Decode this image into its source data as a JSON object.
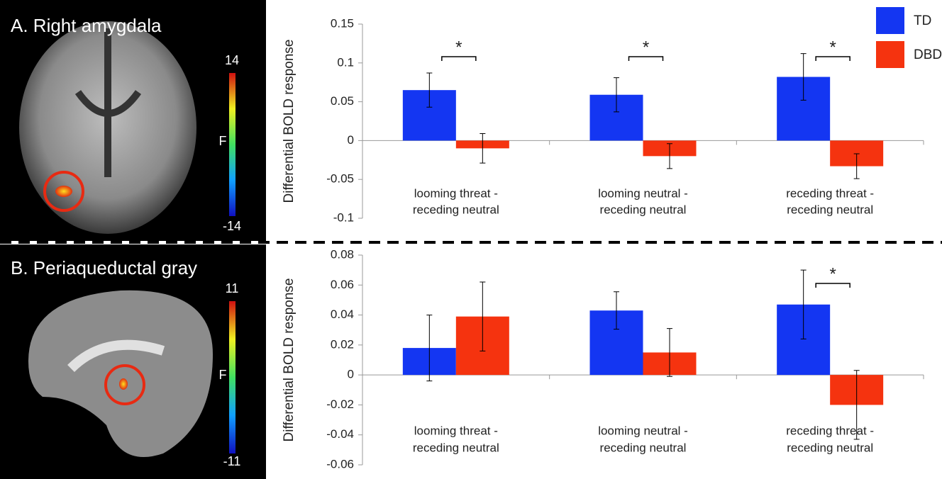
{
  "panels": [
    {
      "title": "A. Right amygdala",
      "colorbar": {
        "max": "14",
        "label": "F",
        "min": "-14"
      }
    },
    {
      "title": "B. Periaqueductal gray",
      "colorbar": {
        "max": "11",
        "label": "F",
        "min": "-11"
      }
    }
  ],
  "chart_data": [
    {
      "type": "bar",
      "y_label": "Differential BOLD response",
      "categories": [
        [
          "looming threat -",
          "receding neutral"
        ],
        [
          "looming neutral -",
          "receding neutral"
        ],
        [
          "receding threat -",
          "receding neutral"
        ]
      ],
      "series": [
        {
          "name": "TD",
          "color": "#1436f2",
          "values": [
            0.065,
            0.059,
            0.082
          ],
          "errors": [
            0.022,
            0.022,
            0.03
          ]
        },
        {
          "name": "DBD",
          "color": "#f5330f",
          "values": [
            -0.01,
            -0.02,
            -0.033
          ],
          "errors": [
            0.019,
            0.016,
            0.016
          ]
        }
      ],
      "significance": [
        "*",
        "*",
        "*"
      ],
      "ylim": [
        -0.1,
        0.15
      ],
      "yticks": [
        -0.1,
        -0.05,
        0,
        0.05,
        0.1,
        0.15
      ],
      "legend": "top-right"
    },
    {
      "type": "bar",
      "y_label": "Differential BOLD response",
      "categories": [
        [
          "looming threat -",
          "receding neutral"
        ],
        [
          "looming neutral -",
          "receding neutral"
        ],
        [
          "receding threat -",
          "receding neutral"
        ]
      ],
      "series": [
        {
          "color": "#1436f2",
          "values": [
            0.018,
            0.043,
            0.047
          ],
          "errors": [
            0.022,
            0.0125,
            0.023
          ]
        },
        {
          "color": "#f5330f",
          "values": [
            0.039,
            0.015,
            -0.02
          ],
          "errors": [
            0.023,
            0.016,
            0.023
          ]
        }
      ],
      "significance": [
        null,
        null,
        "*"
      ],
      "ylim": [
        -0.06,
        0.08
      ],
      "yticks": [
        -0.06,
        -0.04,
        -0.02,
        0,
        0.02,
        0.04,
        0.06,
        0.08
      ]
    }
  ]
}
